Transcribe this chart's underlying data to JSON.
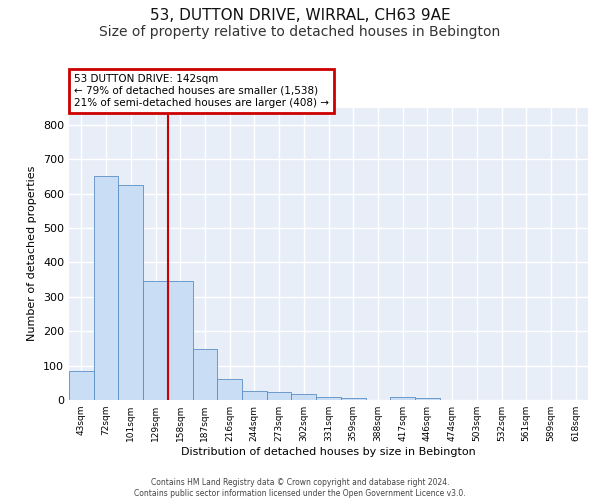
{
  "title": "53, DUTTON DRIVE, WIRRAL, CH63 9AE",
  "subtitle": "Size of property relative to detached houses in Bebington",
  "xlabel": "Distribution of detached houses by size in Bebington",
  "ylabel": "Number of detached properties",
  "categories": [
    "43sqm",
    "72sqm",
    "101sqm",
    "129sqm",
    "158sqm",
    "187sqm",
    "216sqm",
    "244sqm",
    "273sqm",
    "302sqm",
    "331sqm",
    "359sqm",
    "388sqm",
    "417sqm",
    "446sqm",
    "474sqm",
    "503sqm",
    "532sqm",
    "561sqm",
    "589sqm",
    "618sqm"
  ],
  "values": [
    83,
    650,
    625,
    345,
    345,
    148,
    60,
    25,
    22,
    18,
    10,
    5,
    0,
    8,
    5,
    0,
    0,
    0,
    0,
    0,
    0
  ],
  "bar_color": "#c9ddf5",
  "bar_edge_color": "#5b8ec4",
  "vline_color": "#cc0000",
  "annotation_text": "53 DUTTON DRIVE: 142sqm\n← 79% of detached houses are smaller (1,538)\n21% of semi-detached houses are larger (408) →",
  "annotation_box_color": "#cc0000",
  "ylim": [
    0,
    850
  ],
  "yticks": [
    0,
    100,
    200,
    300,
    400,
    500,
    600,
    700,
    800
  ],
  "footer_line1": "Contains HM Land Registry data © Crown copyright and database right 2024.",
  "footer_line2": "Contains public sector information licensed under the Open Government Licence v3.0.",
  "background_color": "#e8eef8",
  "grid_color": "#ffffff",
  "title_fontsize": 11,
  "subtitle_fontsize": 10
}
